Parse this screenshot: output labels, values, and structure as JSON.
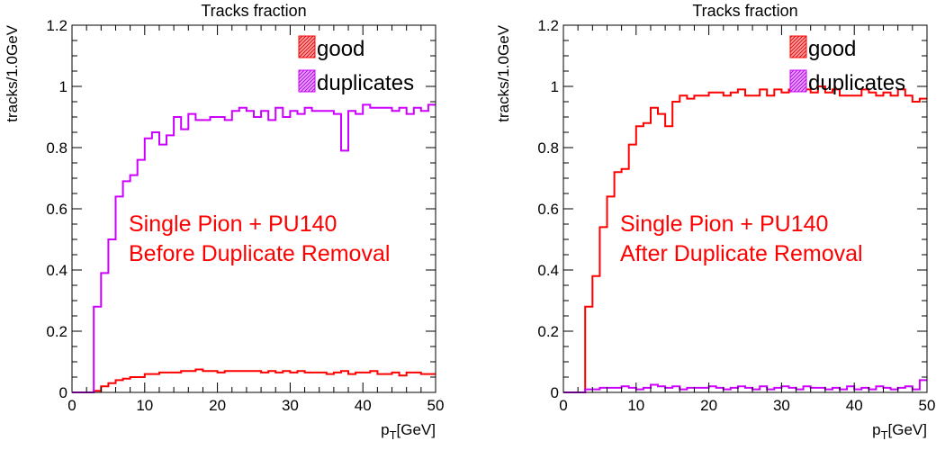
{
  "chart_data": [
    {
      "type": "step-histogram",
      "title": "Tracks fraction",
      "xlabel": "p_T[GeV]",
      "ylabel": "tracks/1.0GeV",
      "xlim": [
        0,
        50
      ],
      "ylim": [
        0,
        1.2
      ],
      "x_ticks": [
        "0",
        "10",
        "20",
        "30",
        "40",
        "50"
      ],
      "y_ticks": [
        "0",
        "0.2",
        "0.4",
        "0.6",
        "0.8",
        "1",
        "1.2"
      ],
      "bin_width": 1,
      "grid": false,
      "legend_position": "top-right",
      "annotation": [
        "Single Pion + PU140",
        "Before Duplicate Removal"
      ],
      "series": [
        {
          "name": "good",
          "color": "#ff0000",
          "values": [
            0,
            0,
            0,
            0.005,
            0.02,
            0.03,
            0.04,
            0.045,
            0.05,
            0.05,
            0.06,
            0.06,
            0.065,
            0.065,
            0.065,
            0.07,
            0.07,
            0.075,
            0.07,
            0.07,
            0.065,
            0.07,
            0.07,
            0.07,
            0.07,
            0.07,
            0.065,
            0.07,
            0.065,
            0.07,
            0.065,
            0.07,
            0.065,
            0.065,
            0.065,
            0.06,
            0.065,
            0.07,
            0.06,
            0.065,
            0.065,
            0.07,
            0.06,
            0.06,
            0.065,
            0.055,
            0.065,
            0.065,
            0.06,
            0.06
          ]
        },
        {
          "name": "duplicates",
          "color": "#cc00ff",
          "values": [
            0,
            0,
            0,
            0.28,
            0.39,
            0.5,
            0.64,
            0.69,
            0.71,
            0.76,
            0.83,
            0.85,
            0.81,
            0.84,
            0.9,
            0.86,
            0.91,
            0.89,
            0.89,
            0.9,
            0.9,
            0.89,
            0.92,
            0.93,
            0.92,
            0.9,
            0.92,
            0.89,
            0.93,
            0.9,
            0.92,
            0.91,
            0.93,
            0.92,
            0.92,
            0.92,
            0.91,
            0.79,
            0.92,
            0.91,
            0.94,
            0.93,
            0.93,
            0.93,
            0.92,
            0.93,
            0.91,
            0.93,
            0.92,
            0.94
          ]
        }
      ]
    },
    {
      "type": "step-histogram",
      "title": "Tracks fraction",
      "xlabel": "p_T[GeV]",
      "ylabel": "tracks/1.0GeV",
      "xlim": [
        0,
        50
      ],
      "ylim": [
        0,
        1.2
      ],
      "x_ticks": [
        "0",
        "10",
        "20",
        "30",
        "40",
        "50"
      ],
      "y_ticks": [
        "0",
        "0.2",
        "0.4",
        "0.6",
        "0.8",
        "1",
        "1.2"
      ],
      "bin_width": 1,
      "grid": false,
      "legend_position": "top-right",
      "annotation": [
        "Single Pion + PU140",
        "After Duplicate Removal"
      ],
      "series": [
        {
          "name": "good",
          "color": "#ff0000",
          "values": [
            0,
            0,
            0,
            0.28,
            0.38,
            0.54,
            0.64,
            0.72,
            0.73,
            0.81,
            0.87,
            0.88,
            0.93,
            0.91,
            0.87,
            0.95,
            0.97,
            0.96,
            0.97,
            0.97,
            0.98,
            0.98,
            0.97,
            0.98,
            0.99,
            0.97,
            0.97,
            0.99,
            0.97,
            0.99,
            0.98,
            0.99,
            1.0,
            0.99,
            0.98,
            1.0,
            0.98,
            0.99,
            0.97,
            0.97,
            0.97,
            0.99,
            0.98,
            0.97,
            0.98,
            0.97,
            0.99,
            0.97,
            0.95,
            0.96
          ]
        },
        {
          "name": "duplicates",
          "color": "#cc00ff",
          "values": [
            0,
            0,
            0,
            0.01,
            0.01,
            0.015,
            0.015,
            0.015,
            0.02,
            0.015,
            0.01,
            0.015,
            0.025,
            0.02,
            0.015,
            0.02,
            0.01,
            0.015,
            0.015,
            0.015,
            0.02,
            0.015,
            0.01,
            0.015,
            0.02,
            0.015,
            0.01,
            0.02,
            0.01,
            0.015,
            0.02,
            0.015,
            0.01,
            0.02,
            0.015,
            0.015,
            0.01,
            0.015,
            0.01,
            0.02,
            0.01,
            0.015,
            0.01,
            0.02,
            0.015,
            0.01,
            0.015,
            0.02,
            0.01,
            0.04
          ]
        }
      ]
    }
  ]
}
